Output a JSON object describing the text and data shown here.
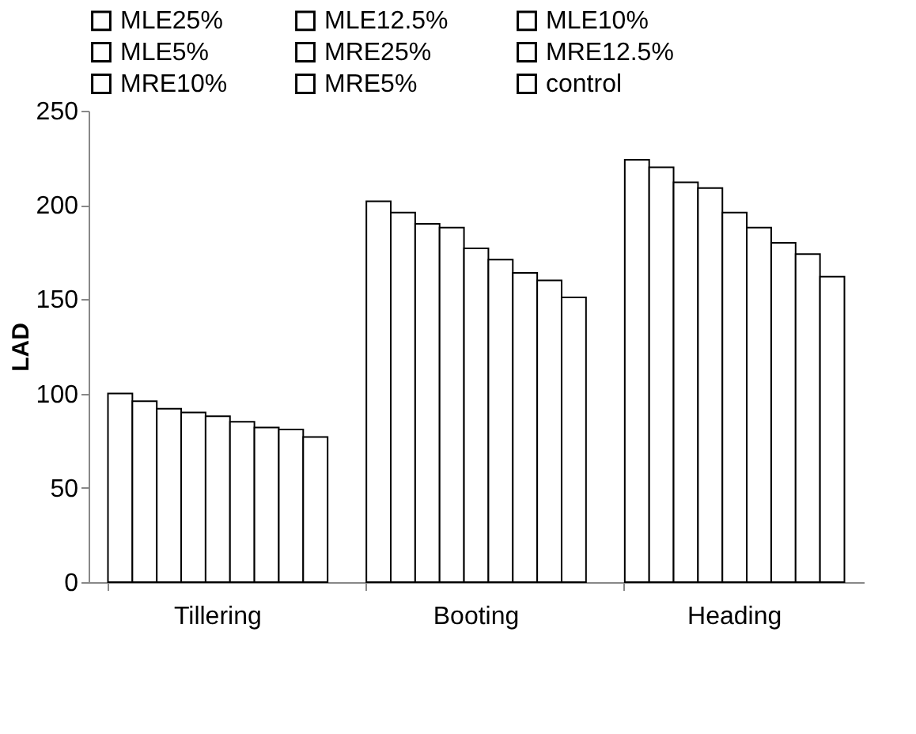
{
  "chart_data": {
    "type": "bar",
    "ylabel": "LAD",
    "categories": [
      "Tillering",
      "Booting",
      "Heading"
    ],
    "series": [
      {
        "name": "MLE25%",
        "color": "#ffffff",
        "values": [
          100,
          202,
          224
        ]
      },
      {
        "name": "MLE12.5%",
        "color": "#ffffff",
        "values": [
          96,
          196,
          220
        ]
      },
      {
        "name": "MLE10%",
        "color": "#ffffff",
        "values": [
          92,
          190,
          212
        ]
      },
      {
        "name": "MLE5%",
        "color": "#ffffff",
        "values": [
          90,
          188,
          209
        ]
      },
      {
        "name": "MRE25%",
        "color": "#ffffff",
        "values": [
          88,
          177,
          196
        ]
      },
      {
        "name": "MRE12.5%",
        "color": "#ffffff",
        "values": [
          85,
          171,
          188
        ]
      },
      {
        "name": "MRE10%",
        "color": "#ffffff",
        "values": [
          82,
          164,
          180
        ]
      },
      {
        "name": "MRE5%",
        "color": "#ffffff",
        "values": [
          81,
          160,
          174
        ]
      },
      {
        "name": "control",
        "color": "#ffffff",
        "values": [
          77,
          151,
          162
        ]
      }
    ],
    "ylim": [
      0,
      250
    ],
    "yticks": [
      0,
      50,
      100,
      150,
      200,
      250
    ],
    "grid": false,
    "legend": "top"
  }
}
